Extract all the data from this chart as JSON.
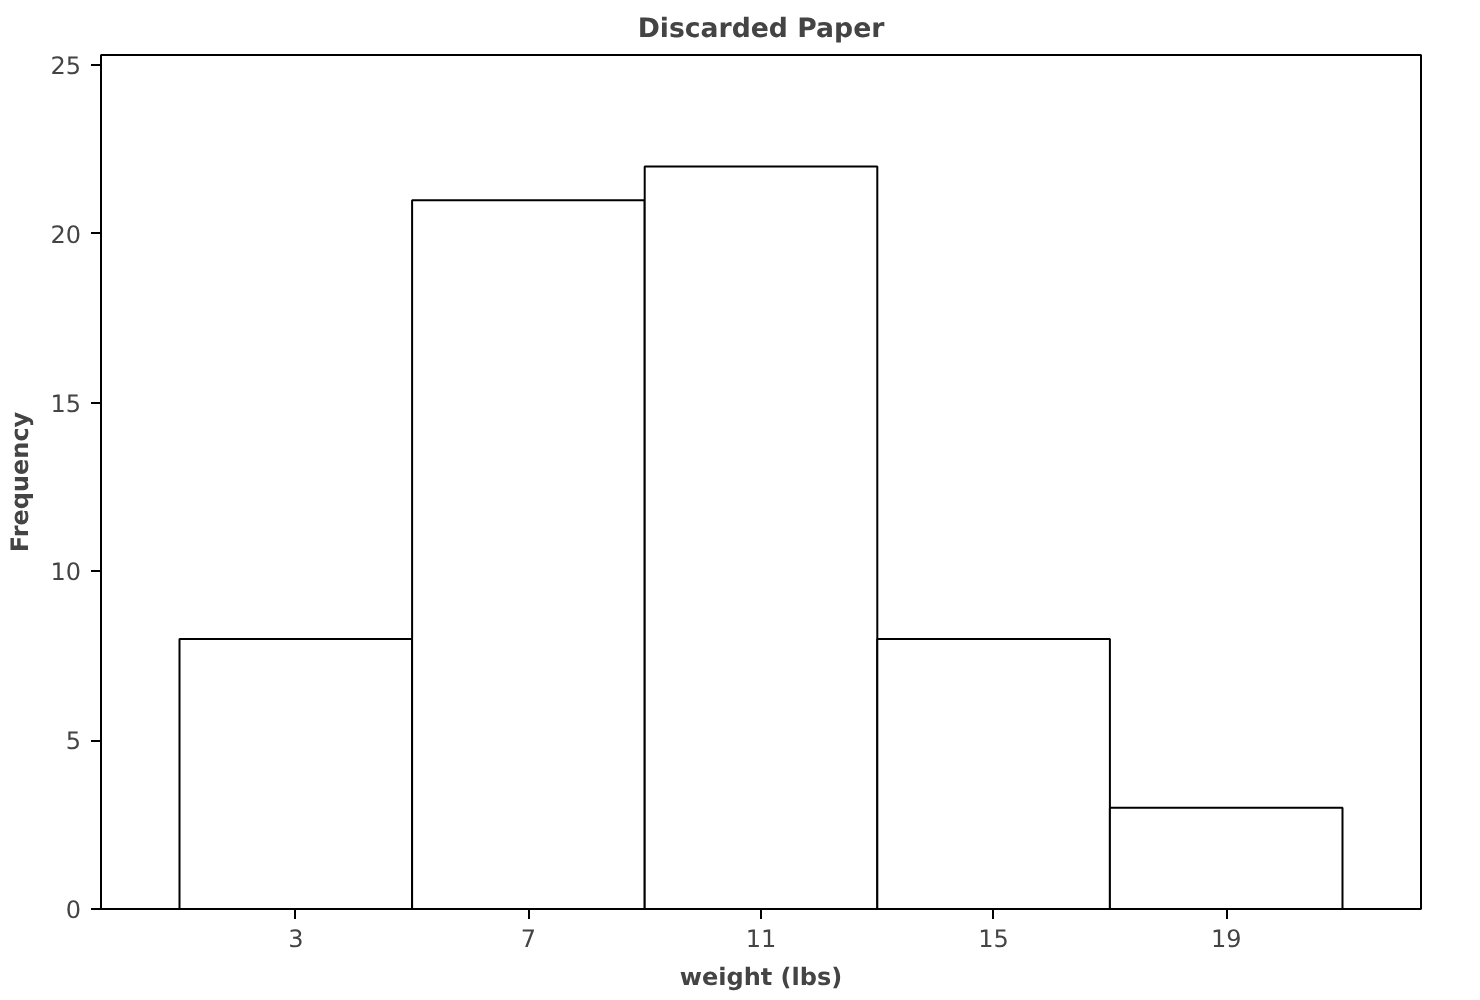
{
  "chart_data": {
    "type": "histogram",
    "title": "Discarded Paper",
    "xlabel": "weight (lbs)",
    "ylabel": "Frequency",
    "bins": [
      1,
      5,
      9,
      13,
      17,
      21
    ],
    "values": [
      8,
      21,
      22,
      8,
      3
    ],
    "color": "#ffffff",
    "xlim": [
      -0.35,
      22.35
    ],
    "ylim": [
      0,
      25.3
    ],
    "xticks": [
      3,
      7,
      11,
      15,
      19
    ],
    "yticks": [
      0,
      5,
      10,
      15,
      20,
      25
    ],
    "grid": false
  }
}
